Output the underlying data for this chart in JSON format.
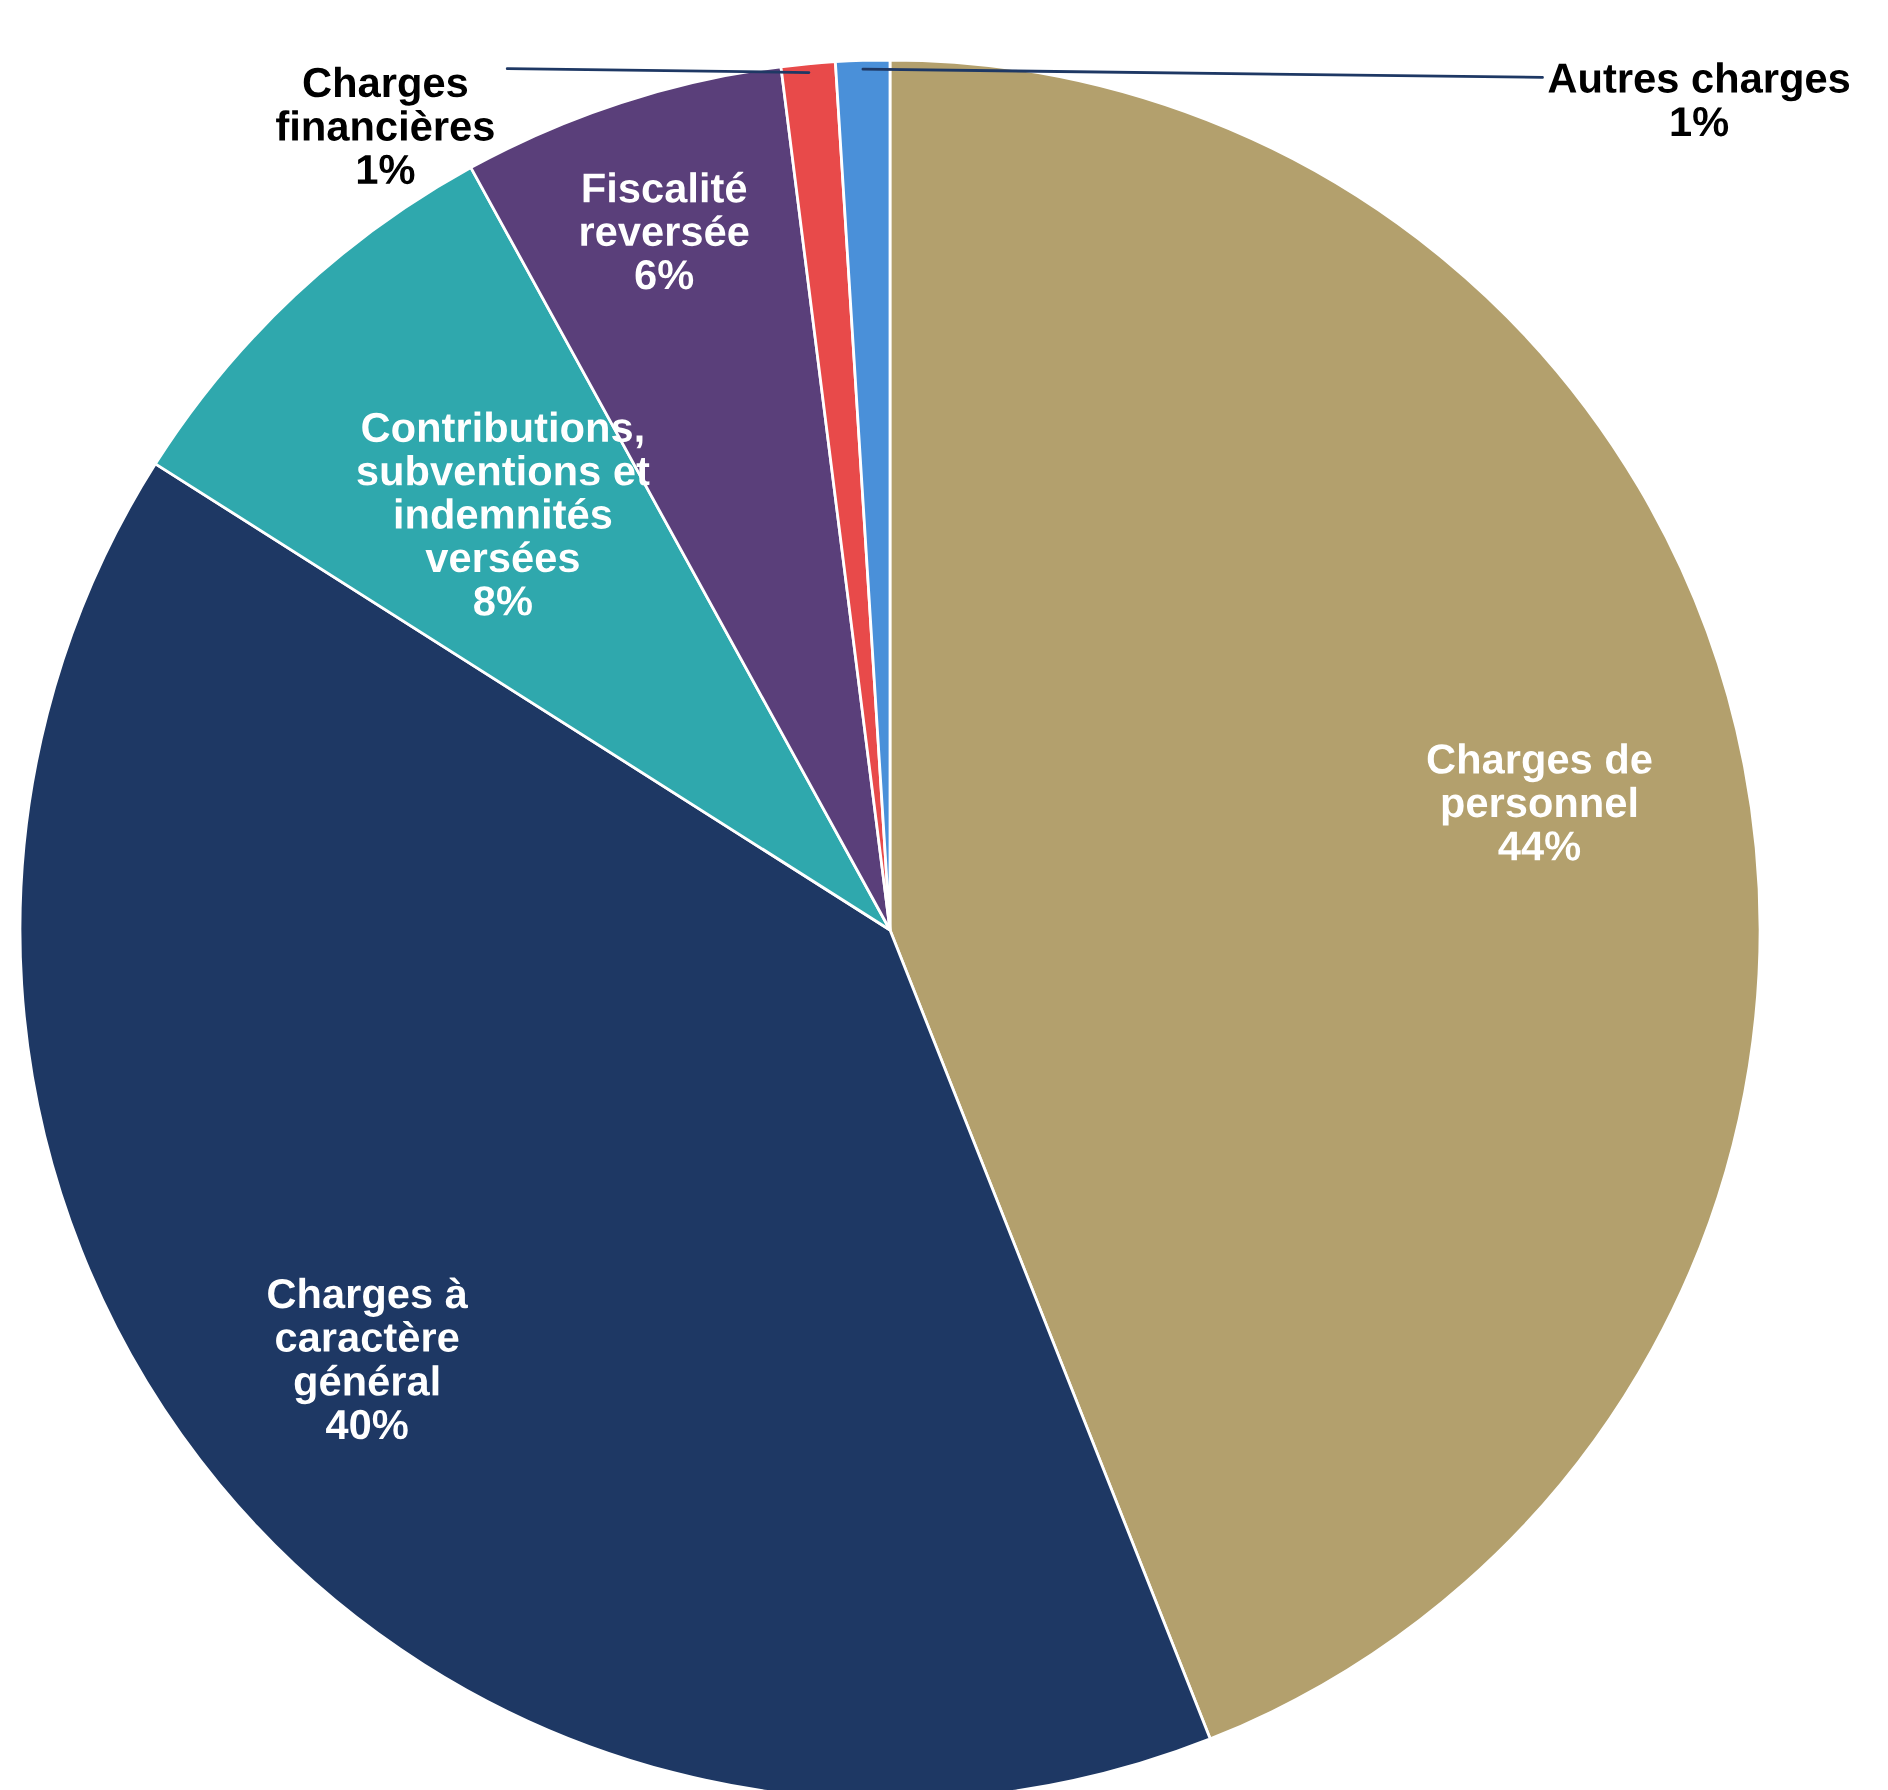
{
  "chart_data": {
    "type": "pie",
    "categories": [
      "Charges de\npersonnel",
      "Charges à\ncaractère\ngénéral",
      "Contributions,\nsubventions et\nindemnités\nversées",
      "Fiscalité\nreversée",
      "Charges\nfinancières",
      "Autres charges"
    ],
    "values": [
      44,
      40,
      8,
      6,
      1,
      1
    ],
    "value_labels": [
      "44%",
      "40%",
      "8%",
      "6%",
      "1%",
      "1%"
    ],
    "colors": [
      "#b3a06d",
      "#1e3864",
      "#2fa8ad",
      "#5a3f7a",
      "#e84a4a",
      "#4a90d9"
    ],
    "legend": false
  }
}
